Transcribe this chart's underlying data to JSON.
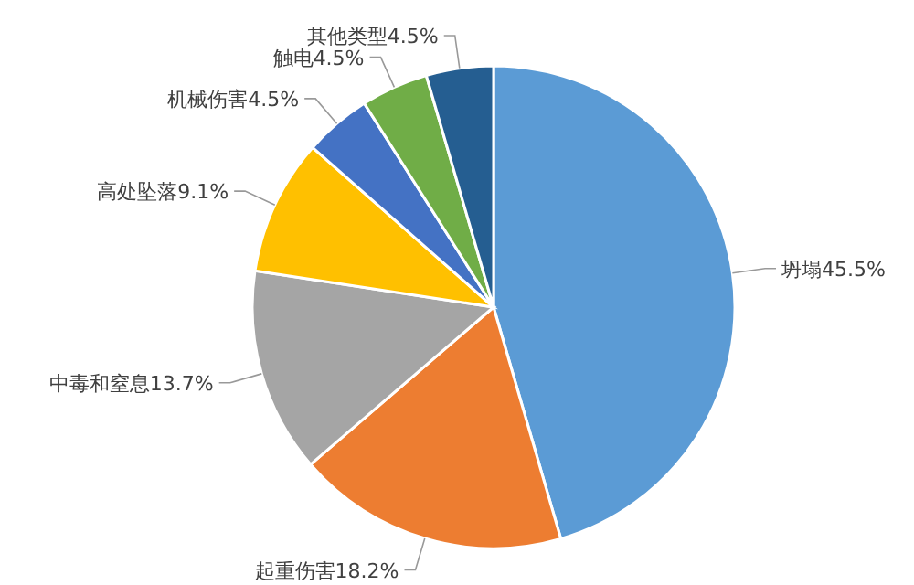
{
  "chart_data": {
    "type": "pie",
    "categories": [
      "坍塌",
      "起重伤害",
      "中毒和窒息",
      "高处坠落",
      "机械伤害",
      "触电",
      "其他类型"
    ],
    "values": [
      45.5,
      18.2,
      13.7,
      9.1,
      4.5,
      4.5,
      4.5
    ],
    "colors": [
      "#5b9bd5",
      "#ed7d31",
      "#a5a5a5",
      "#ffc000",
      "#4472c4",
      "#70ad47",
      "#255e91"
    ],
    "value_labels": [
      "45.5%",
      "18.2%",
      "13.7%",
      "9.1%",
      "4.5%",
      "4.5%",
      "4.5%"
    ]
  }
}
